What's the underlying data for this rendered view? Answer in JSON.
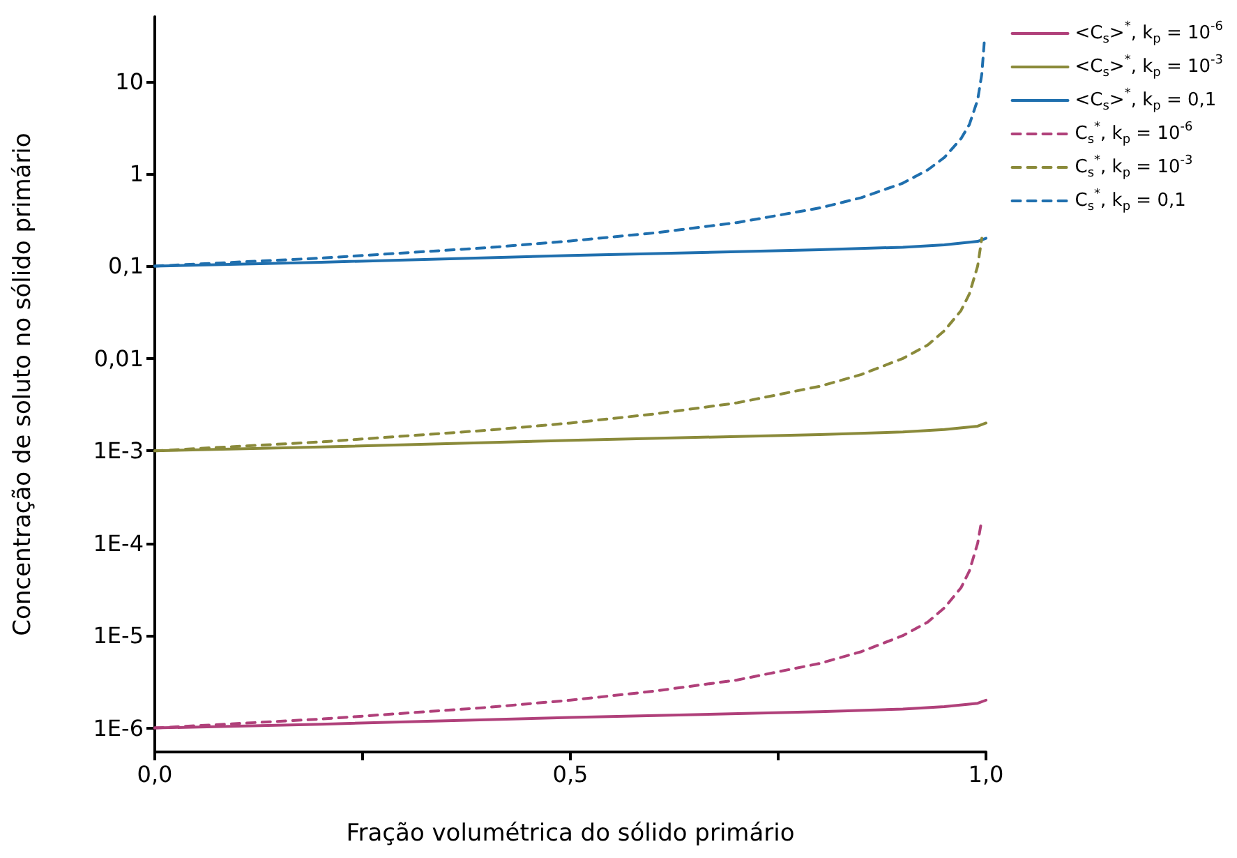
{
  "chart_data": {
    "type": "line",
    "xlabel": "Fração volumétrica do sólido primário",
    "ylabel": "Concentração de soluto no sólido primário",
    "log": "y",
    "grid": false,
    "legend": "top right",
    "marker": "none",
    "xlim": [
      0,
      1
    ],
    "xticks": [
      {
        "value": 0,
        "label": "0,0"
      },
      {
        "value": 0.25,
        "label": null
      },
      {
        "value": 0.5,
        "label": "0,5"
      },
      {
        "value": 0.75,
        "label": null
      },
      {
        "value": 1,
        "label": "1,0"
      }
    ],
    "ylim": [
      5.5e-07,
      50
    ],
    "yticks": [
      {
        "value": 1e-06,
        "label": "1E-6"
      },
      {
        "value": 1e-05,
        "label": "1E-5"
      },
      {
        "value": 0.0001,
        "label": "1E-4"
      },
      {
        "value": 0.001,
        "label": "1E-3"
      },
      {
        "value": 0.01,
        "label": "0,01"
      },
      {
        "value": 0.1,
        "label": "0,1"
      },
      {
        "value": 1,
        "label": "1"
      },
      {
        "value": 10,
        "label": "10"
      }
    ],
    "series": [
      {
        "name": "<C$_{s}$>$^{*}$, k$_{p}$ = 10$^{-6}$",
        "color": "#b0407a",
        "line_style": "solid",
        "x": [
          0,
          0.2,
          0.5,
          0.8,
          0.9,
          0.95,
          0.99,
          1.0
        ],
        "values": [
          1e-06,
          1.1e-06,
          1.3e-06,
          1.5e-06,
          1.6e-06,
          1.7e-06,
          1.85e-06,
          2e-06
        ]
      },
      {
        "name": "<C$_{s}$>$^{*}$, k$_{p}$ = 10$^{-3}$",
        "color": "#8a8a3a",
        "line_style": "solid",
        "x": [
          0,
          0.2,
          0.5,
          0.8,
          0.9,
          0.95,
          0.99,
          1.0
        ],
        "values": [
          0.001,
          0.0011,
          0.0013,
          0.0015,
          0.0016,
          0.0017,
          0.00185,
          0.002
        ]
      },
      {
        "name": "<C$_{s}$>$^{*}$, k$_{p}$ = 0,1",
        "color": "#1f6fae",
        "line_style": "solid",
        "x": [
          0,
          0.2,
          0.5,
          0.8,
          0.9,
          0.95,
          0.99,
          1.0
        ],
        "values": [
          0.1,
          0.11,
          0.13,
          0.15,
          0.16,
          0.17,
          0.185,
          0.2
        ]
      },
      {
        "name": "C$_{s}$$^{*}$, k$_{p}$ = 10$^{-6}$",
        "color": "#b0407a",
        "line_style": "dashed",
        "x": [
          0,
          0.2,
          0.4,
          0.5,
          0.6,
          0.7,
          0.8,
          0.85,
          0.9,
          0.93,
          0.95,
          0.97,
          0.98,
          0.99,
          0.995
        ],
        "values": [
          1e-06,
          1.25e-06,
          1.67e-06,
          2e-06,
          2.5e-06,
          3.3e-06,
          5e-06,
          6.7e-06,
          1e-05,
          1.4e-05,
          2e-05,
          3.3e-05,
          5e-05,
          0.0001,
          0.00018
        ]
      },
      {
        "name": "C$_{s}$$^{*}$, k$_{p}$ = 10$^{-3}$",
        "color": "#8a8a3a",
        "line_style": "dashed",
        "x": [
          0,
          0.2,
          0.4,
          0.5,
          0.6,
          0.7,
          0.8,
          0.85,
          0.9,
          0.93,
          0.95,
          0.97,
          0.98,
          0.99,
          0.995
        ],
        "values": [
          0.001,
          0.00125,
          0.00167,
          0.002,
          0.0025,
          0.0033,
          0.005,
          0.0067,
          0.01,
          0.014,
          0.02,
          0.033,
          0.05,
          0.1,
          0.2
        ]
      },
      {
        "name": "C$_{s}$$^{*}$, k$_{p}$ = 0,1",
        "color": "#1f6fae",
        "line_style": "dashed",
        "x": [
          0,
          0.2,
          0.4,
          0.5,
          0.6,
          0.7,
          0.8,
          0.85,
          0.9,
          0.93,
          0.95,
          0.97,
          0.98,
          0.99,
          0.995,
          0.998
        ],
        "values": [
          0.1,
          0.122,
          0.158,
          0.187,
          0.228,
          0.295,
          0.426,
          0.55,
          0.79,
          1.1,
          1.5,
          2.4,
          3.4,
          6.3,
          12,
          27
        ]
      }
    ]
  }
}
